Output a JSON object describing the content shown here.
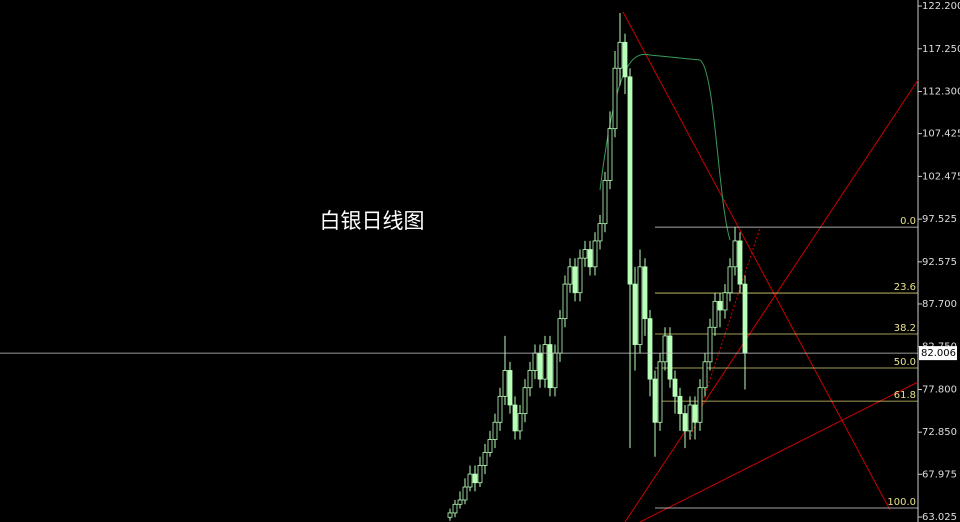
{
  "chart_data": {
    "type": "candlestick",
    "title": "白银日线图",
    "ylim": [
      62.45,
      122.9
    ],
    "yticks": [
      {
        "value": 122.2,
        "label": "122.200"
      },
      {
        "value": 117.25,
        "label": "117.250"
      },
      {
        "value": 112.3,
        "label": "112.300"
      },
      {
        "value": 107.425,
        "label": "107.425"
      },
      {
        "value": 102.475,
        "label": "102.475"
      },
      {
        "value": 97.525,
        "label": "97.525"
      },
      {
        "value": 92.575,
        "label": "92.575"
      },
      {
        "value": 87.7,
        "label": "87.700"
      },
      {
        "value": 82.75,
        "label": "82.750"
      },
      {
        "value": 77.8,
        "label": "77.800"
      },
      {
        "value": 72.85,
        "label": "72.850"
      },
      {
        "value": 67.975,
        "label": "67.975"
      },
      {
        "value": 63.025,
        "label": "63.025"
      }
    ],
    "current_price": 82.006,
    "fib_levels": [
      {
        "label": "0.0",
        "price": 96.6
      },
      {
        "label": "23.6",
        "price": 88.96
      },
      {
        "label": "38.2",
        "price": 84.22
      },
      {
        "label": "50.0",
        "price": 80.28
      },
      {
        "label": "61.8",
        "price": 76.45
      },
      {
        "label": "100.0",
        "price": 64.07
      }
    ],
    "color": "#b8ffb8",
    "candles": [
      [
        63,
        64,
        62.6,
        63.5
      ],
      [
        63.5,
        65,
        63,
        64.5
      ],
      [
        64.5,
        66,
        64,
        65
      ],
      [
        65,
        67.5,
        64.5,
        66.5
      ],
      [
        66.5,
        69,
        66,
        68
      ],
      [
        68,
        69,
        66,
        67
      ],
      [
        67,
        70,
        66.5,
        69
      ],
      [
        69,
        71.5,
        68,
        70.5
      ],
      [
        70.5,
        73,
        70,
        72
      ],
      [
        72,
        75,
        71,
        74
      ],
      [
        74,
        78,
        73,
        77
      ],
      [
        77,
        84,
        76,
        80
      ],
      [
        80,
        81,
        75,
        76
      ],
      [
        76,
        77,
        72,
        73
      ],
      [
        73,
        76,
        72,
        75
      ],
      [
        75,
        79,
        74,
        78
      ],
      [
        78,
        81,
        77,
        80
      ],
      [
        80,
        83,
        79,
        82
      ],
      [
        82,
        83,
        78,
        79
      ],
      [
        79,
        84,
        78,
        83
      ],
      [
        83,
        84,
        77,
        78
      ],
      [
        78,
        83,
        77,
        82
      ],
      [
        82,
        87,
        81,
        86
      ],
      [
        86,
        91,
        85,
        90
      ],
      [
        90,
        93,
        89,
        92
      ],
      [
        92,
        93,
        88,
        89
      ],
      [
        89,
        94,
        88,
        93
      ],
      [
        93,
        95,
        92,
        94
      ],
      [
        94,
        95,
        91,
        92
      ],
      [
        92,
        96,
        91,
        95
      ],
      [
        95,
        98,
        94,
        97
      ],
      [
        97,
        103,
        96,
        102
      ],
      [
        102,
        110,
        101,
        108
      ],
      [
        108,
        117,
        107,
        115
      ],
      [
        115,
        121.4,
        113,
        118
      ],
      [
        118,
        119,
        112,
        114
      ],
      [
        114,
        115,
        71,
        90
      ],
      [
        90,
        92,
        80,
        83
      ],
      [
        83,
        94,
        82,
        92
      ],
      [
        92,
        93,
        84,
        86
      ],
      [
        86,
        87,
        77,
        79
      ],
      [
        79,
        80,
        70,
        74
      ],
      [
        74,
        82,
        73,
        81
      ],
      [
        81,
        85,
        80,
        84
      ],
      [
        84,
        85,
        78,
        79
      ],
      [
        79,
        80,
        75,
        77
      ],
      [
        77,
        78,
        73,
        75
      ],
      [
        75,
        76,
        71,
        73
      ],
      [
        73,
        77,
        72,
        76
      ],
      [
        76,
        77,
        72,
        74
      ],
      [
        74,
        79,
        73,
        78
      ],
      [
        78,
        82,
        77,
        81
      ],
      [
        81,
        86,
        80,
        85
      ],
      [
        85,
        89,
        84,
        88
      ],
      [
        88,
        89,
        85,
        87
      ],
      [
        87,
        90,
        86,
        89
      ],
      [
        89,
        93,
        88,
        92
      ],
      [
        92,
        96.6,
        91,
        95
      ],
      [
        95,
        96,
        89,
        90
      ],
      [
        90,
        91,
        77.8,
        82
      ]
    ]
  }
}
